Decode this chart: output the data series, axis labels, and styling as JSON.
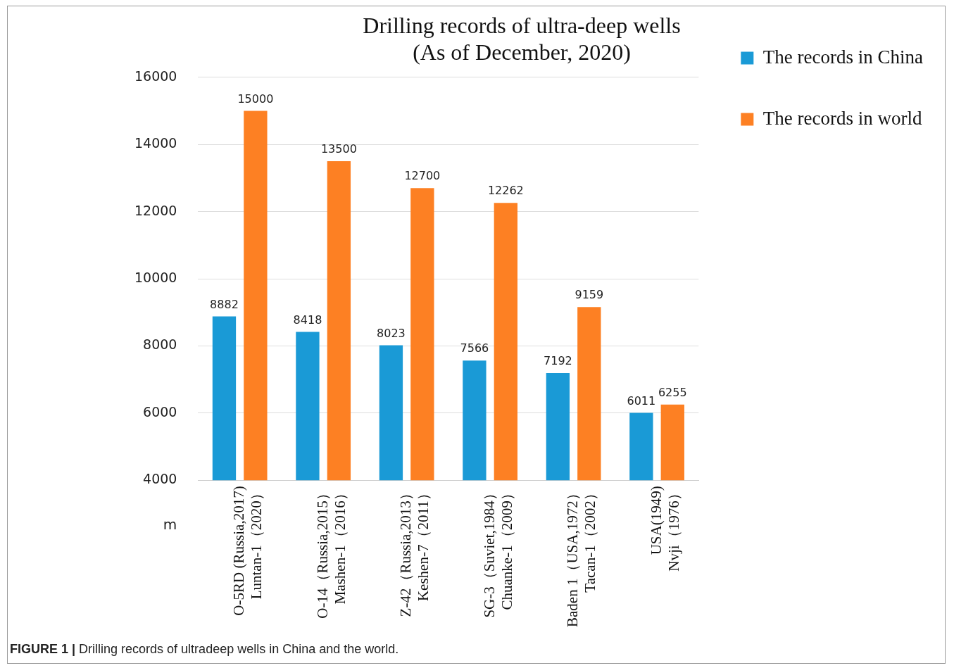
{
  "chart_data": {
    "type": "bar",
    "title": "Drilling records of ultra-deep wells\n(As of December, 2020)",
    "ylabel": "m",
    "categories": [
      "O-5RD (Russia,2017)\nLuntan-1（2020）",
      "O-14（Russia,2015）\nMashen-1（2016）",
      "Z-42（Russia,2013）\nKeshen-7（2011）",
      "SG-3（Suviet,1984）\nChuanke-1（2009）",
      "Baden 1（USA,1972）\nTacan-1（2002）",
      "USA(1949)\nNvji（1976）"
    ],
    "series": [
      {
        "name": "The records in China",
        "color": "#1a9ad6",
        "values": [
          8882,
          8418,
          8023,
          7566,
          7192,
          6011
        ]
      },
      {
        "name": "The records in world",
        "color": "#fd8023",
        "values": [
          15000,
          13500,
          12700,
          12262,
          9159,
          6255
        ]
      }
    ],
    "ylim": [
      4000,
      16000
    ],
    "yticks": [
      4000,
      6000,
      8000,
      10000,
      12000,
      14000,
      16000
    ],
    "grid": "y",
    "legend": "top right",
    "data_labels": true,
    "annotations": [
      "FIGURE 1 | Drilling records of ultradeep wells in China and the world."
    ]
  }
}
